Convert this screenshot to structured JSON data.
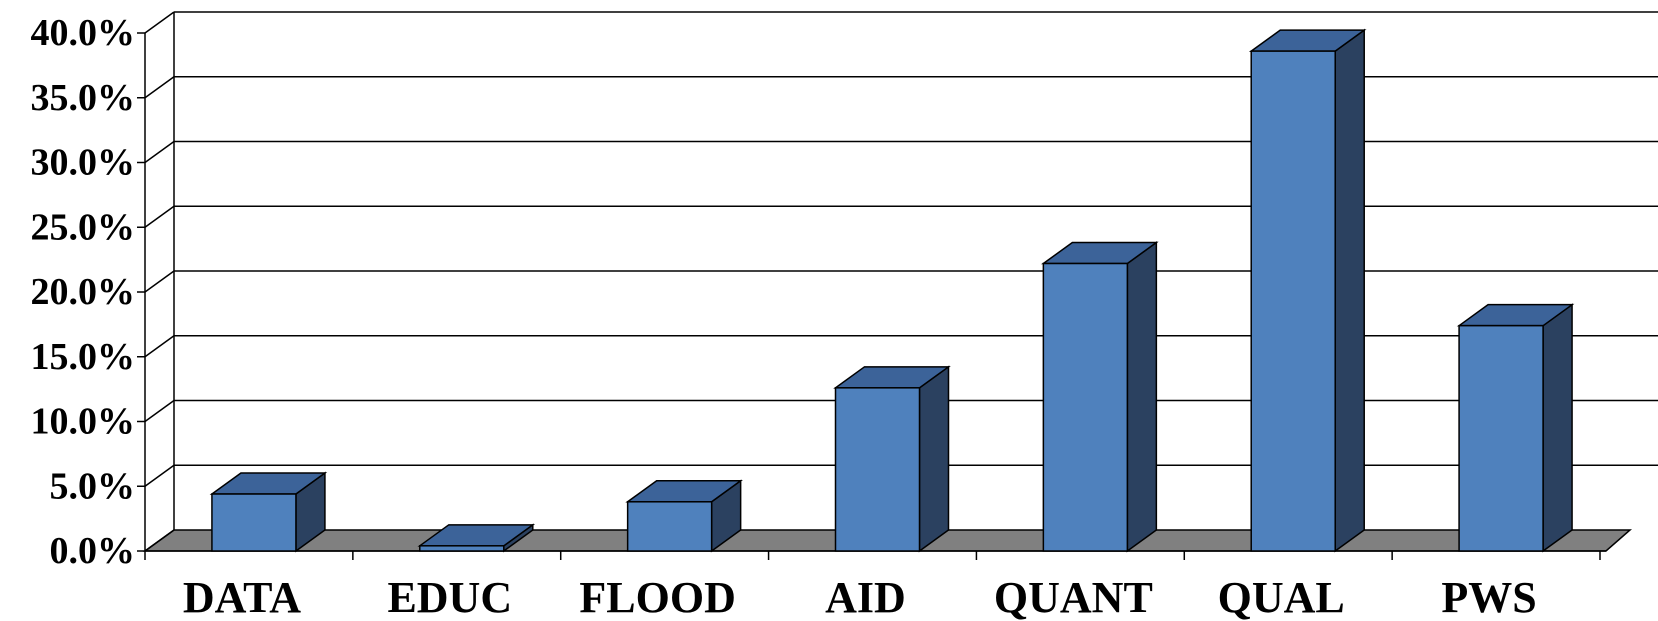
{
  "chart_data": {
    "type": "bar",
    "categories": [
      "DATA",
      "EDUC",
      "FLOOD",
      "AID",
      "QUANT",
      "QUAL",
      "PWS"
    ],
    "values": [
      4.4,
      0.4,
      3.8,
      12.6,
      22.2,
      38.6,
      17.4
    ],
    "ylim": [
      0,
      40
    ],
    "yticks": [
      "0.0%",
      "5.0%",
      "10.0%",
      "15.0%",
      "20.0%",
      "25.0%",
      "30.0%",
      "35.0%",
      "40.0%"
    ],
    "grid": true,
    "style": "3d-column",
    "colors": {
      "bar_front": "#4f81bd",
      "bar_top": "#3c6399",
      "bar_side": "#2b4160",
      "floor": "#808080",
      "grid": "#000000"
    }
  }
}
